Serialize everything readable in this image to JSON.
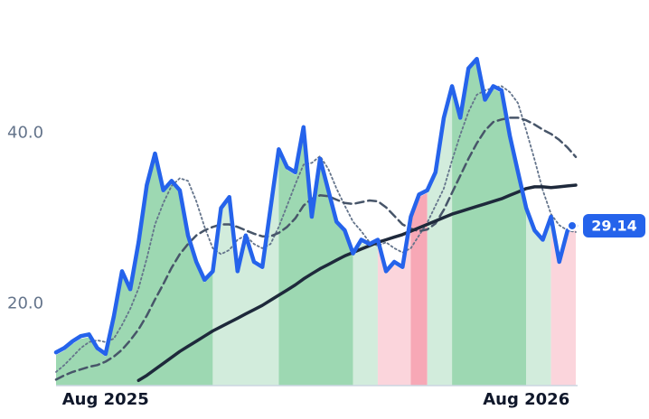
{
  "chart_data": {
    "type": "line",
    "categories": [
      null,
      null,
      null,
      null,
      null,
      null,
      "Aug 2025",
      null,
      null,
      null,
      null,
      null,
      null,
      null,
      null,
      null,
      null,
      null,
      null,
      null,
      null,
      null,
      null,
      null,
      null,
      null,
      null,
      null,
      null,
      null,
      null,
      null,
      null,
      null,
      null,
      null,
      null,
      null,
      null,
      null,
      null,
      null,
      null,
      null,
      null,
      null,
      null,
      null,
      null,
      null,
      null,
      null,
      null,
      null,
      null,
      null,
      null,
      "Aug 2026",
      null,
      null,
      null,
      null,
      null,
      null
    ],
    "series": [
      {
        "color": "#64748b",
        "style": "dotted",
        "values": [
          12.0,
          12.8,
          13.8,
          14.8,
          15.5,
          15.7,
          15.5,
          15.9,
          17.5,
          19.4,
          21.8,
          25.3,
          29.3,
          31.8,
          33.8,
          34.7,
          34.4,
          32.0,
          29.0,
          26.5,
          25.8,
          26.3,
          27.5,
          28.0,
          27.0,
          26.5,
          27.0,
          29.0,
          31.5,
          34.0,
          36.3,
          36.5,
          37.3,
          35.8,
          33.5,
          31.5,
          29.6,
          28.5,
          27.2,
          26.8,
          27.2,
          26.5,
          26.0,
          26.5,
          28.0,
          29.5,
          31.5,
          33.5,
          36.8,
          39.8,
          42.5,
          44.5,
          45.0,
          45.3,
          45.5,
          44.8,
          43.5,
          40.3,
          36.9,
          33.3,
          30.5,
          29.2,
          28.6,
          28.4
        ]
      },
      {
        "color": "#475569",
        "style": "dashed",
        "values": [
          11.1,
          11.6,
          12.0,
          12.3,
          12.6,
          12.8,
          13.2,
          13.8,
          14.6,
          15.7,
          17.0,
          18.6,
          20.5,
          22.3,
          24.2,
          25.8,
          27.0,
          28.0,
          28.6,
          29.0,
          29.3,
          29.3,
          29.0,
          28.6,
          28.2,
          27.9,
          27.9,
          28.3,
          29.0,
          30.0,
          31.5,
          32.3,
          32.7,
          32.6,
          32.2,
          31.8,
          31.7,
          31.9,
          32.1,
          32.0,
          31.3,
          30.3,
          29.3,
          28.8,
          28.5,
          28.7,
          29.4,
          31.0,
          33.0,
          35.0,
          37.0,
          38.8,
          40.3,
          41.3,
          41.6,
          41.8,
          41.8,
          41.5,
          41.0,
          40.4,
          39.9,
          39.2,
          38.3,
          37.2
        ]
      },
      {
        "color": "#1e293b",
        "style": "solid",
        "values": [
          null,
          null,
          null,
          null,
          null,
          null,
          null,
          null,
          null,
          null,
          11.0,
          11.6,
          12.3,
          13.0,
          13.7,
          14.4,
          15.0,
          15.6,
          16.2,
          16.8,
          17.3,
          17.8,
          18.3,
          18.8,
          19.3,
          19.8,
          20.4,
          21.0,
          21.6,
          22.2,
          22.9,
          23.5,
          24.1,
          24.6,
          25.1,
          25.6,
          26.0,
          26.4,
          26.8,
          27.2,
          27.5,
          27.8,
          28.1,
          28.5,
          28.9,
          29.3,
          29.7,
          30.1,
          30.5,
          30.8,
          31.1,
          31.4,
          31.7,
          32.0,
          32.3,
          32.7,
          33.1,
          33.5,
          33.7,
          33.7,
          33.6,
          33.7,
          33.8,
          33.9
        ]
      },
      {
        "color": "#2563eb",
        "style": "bold",
        "values": [
          14.3,
          14.8,
          15.6,
          16.2,
          16.4,
          14.8,
          14.1,
          18.5,
          23.8,
          21.7,
          27.2,
          33.9,
          37.6,
          33.3,
          34.4,
          33.3,
          28.0,
          24.9,
          22.8,
          23.8,
          31.2,
          32.5,
          23.8,
          28.0,
          24.9,
          24.3,
          31.2,
          38.1,
          36.0,
          35.4,
          40.7,
          30.2,
          37.0,
          33.3,
          29.6,
          28.6,
          25.9,
          27.5,
          27.0,
          27.5,
          23.8,
          24.9,
          24.3,
          30.2,
          32.8,
          33.3,
          35.4,
          41.8,
          45.5,
          41.8,
          47.6,
          48.7,
          43.9,
          45.5,
          45.0,
          39.7,
          35.4,
          31.2,
          28.6,
          27.5,
          30.2,
          24.9,
          28.6,
          29.14
        ]
      }
    ],
    "regions": [
      {
        "from": 0,
        "to": 19,
        "color": "#9dd8b2"
      },
      {
        "from": 19,
        "to": 27,
        "color": "#d2ecdc"
      },
      {
        "from": 27,
        "to": 36,
        "color": "#9dd8b2"
      },
      {
        "from": 36,
        "to": 39,
        "color": "#d2ecdc"
      },
      {
        "from": 39,
        "to": 43,
        "color": "#fbd5dc"
      },
      {
        "from": 43,
        "to": 45,
        "color": "#f7a8b6"
      },
      {
        "from": 45,
        "to": 48,
        "color": "#d2ecdc"
      },
      {
        "from": 48,
        "to": 57,
        "color": "#9dd8b2"
      },
      {
        "from": 57,
        "to": 60,
        "color": "#d2ecdc"
      },
      {
        "from": 60,
        "to": 63,
        "color": "#fbd5dc"
      }
    ],
    "ylim": [
      10.4,
      55.6
    ],
    "yticks": [
      {
        "value": 20,
        "label": "20.0"
      },
      {
        "value": 40,
        "label": "40.0"
      }
    ],
    "last_value_series": 3
  }
}
